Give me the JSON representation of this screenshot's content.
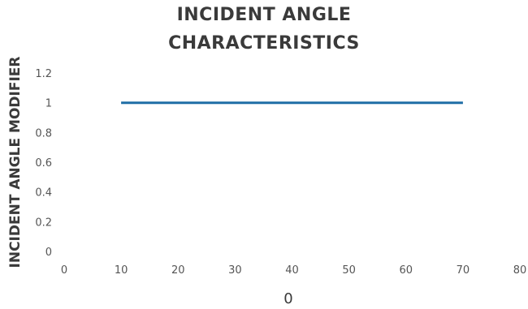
{
  "chart_data": {
    "type": "line",
    "title": "INCIDENT ANGLE CHARACTERISTICS",
    "title_lines": [
      "INCIDENT ANGLE",
      "CHARACTERISTICS"
    ],
    "xlabel": "0",
    "ylabel": "INCIDENT ANGLE MODIFIER",
    "x_ticks": [
      "0",
      "10",
      "20",
      "30",
      "40",
      "50",
      "60",
      "70",
      "80"
    ],
    "y_ticks": [
      "0",
      "0.2",
      "0.4",
      "0.6",
      "0.8",
      "1",
      "1.2"
    ],
    "xlim": [
      0,
      80
    ],
    "ylim": [
      0,
      1.2
    ],
    "grid": false,
    "legend": "none",
    "series": [
      {
        "color": "#1f6ea6",
        "x": [
          10,
          70
        ],
        "y": [
          1,
          1
        ]
      }
    ]
  }
}
